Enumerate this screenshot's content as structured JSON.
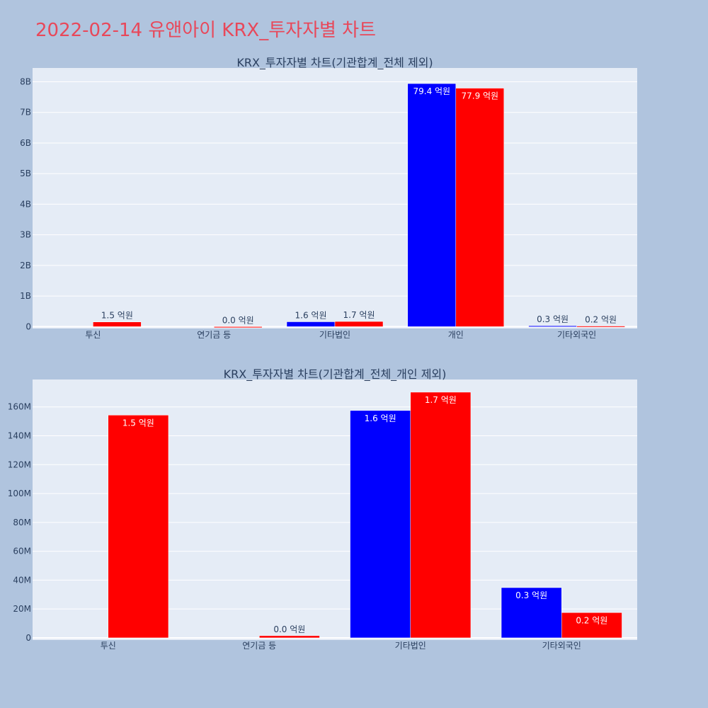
{
  "page": {
    "title": "2022-02-14 유앤아이 KRX_투자자별 차트",
    "background": "#b0c4de",
    "title_color": "#e8485a"
  },
  "chart_data": [
    {
      "type": "bar",
      "title": "KRX_투자자별 차트(기관합계_전체 제외)",
      "categories": [
        "투신",
        "연기금 등",
        "기타법인",
        "개인",
        "기타외국인"
      ],
      "series": [
        {
          "color": "#0000ff",
          "values": [
            0,
            0,
            160000000,
            7940000000,
            30000000
          ],
          "labels": [
            "",
            "",
            "1.6 억원",
            "79.4 억원",
            "0.3 억원"
          ]
        },
        {
          "color": "#ff0000",
          "values": [
            154000000,
            1000000,
            170000000,
            7790000000,
            20000000
          ],
          "labels": [
            "1.5 억원",
            "0.0 억원",
            "1.7 억원",
            "77.9 억원",
            "0.2 억원"
          ]
        }
      ],
      "ylim": [
        -60000000,
        8450000000
      ],
      "yticks": [
        0,
        1000000000,
        2000000000,
        3000000000,
        4000000000,
        5000000000,
        6000000000,
        7000000000,
        8000000000
      ],
      "ytick_labels": [
        "0",
        "1B",
        "2B",
        "3B",
        "4B",
        "5B",
        "6B",
        "7B",
        "8B"
      ],
      "grid": true,
      "plot_bg": "#e5ecf6"
    },
    {
      "type": "bar",
      "title": "KRX_투자자별 차트(기관합계_전체_개인 제외)",
      "categories": [
        "투신",
        "연기금 등",
        "기타법인",
        "기타외국인"
      ],
      "series": [
        {
          "color": "#0000ff",
          "values": [
            0,
            0,
            157500000,
            34800000
          ],
          "labels": [
            "",
            "",
            "1.6 억원",
            "0.3 억원"
          ]
        },
        {
          "color": "#ff0000",
          "values": [
            154300000,
            1500000,
            170200000,
            17500000
          ],
          "labels": [
            "1.5 억원",
            "0.0 억원",
            "1.7 억원",
            "0.2 억원"
          ]
        }
      ],
      "ylim": [
        -1500000,
        179000000
      ],
      "yticks": [
        0,
        20000000,
        40000000,
        60000000,
        80000000,
        100000000,
        120000000,
        140000000,
        160000000
      ],
      "ytick_labels": [
        "0",
        "20M",
        "40M",
        "60M",
        "80M",
        "100M",
        "120M",
        "140M",
        "160M"
      ],
      "grid": true,
      "plot_bg": "#e5ecf6"
    }
  ]
}
